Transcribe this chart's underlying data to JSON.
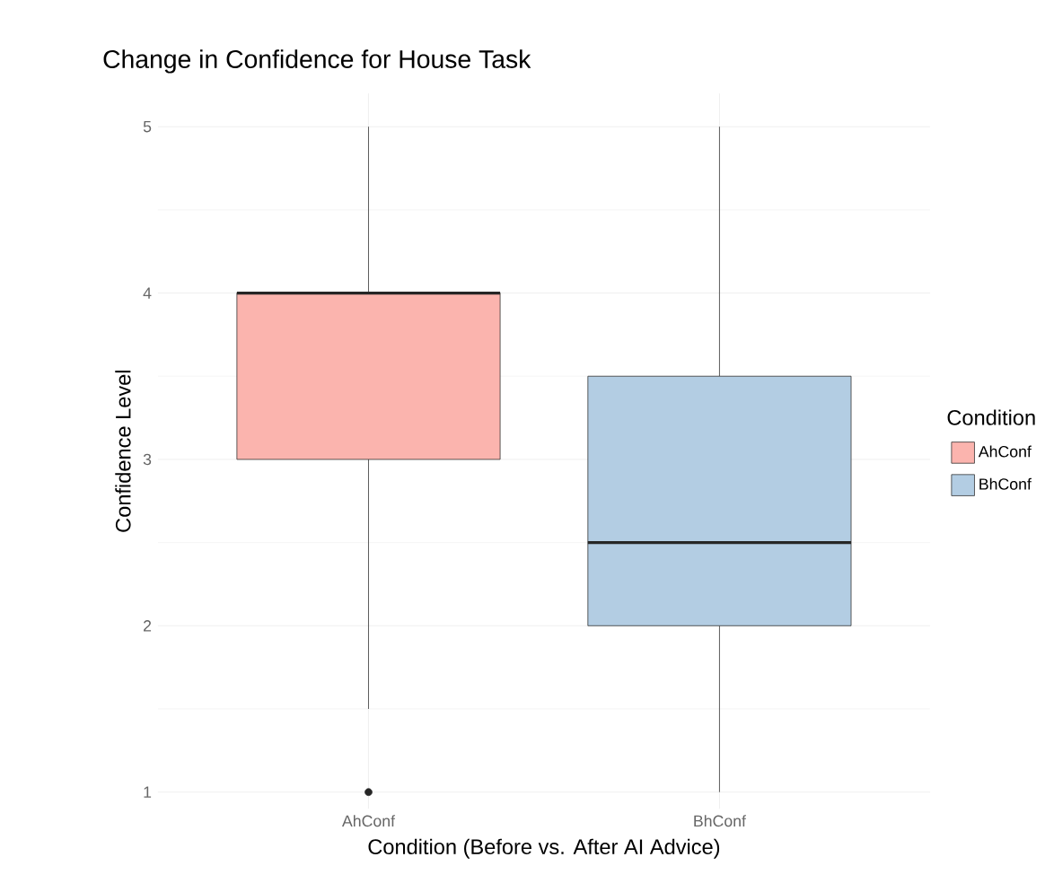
{
  "chart_data": {
    "type": "box",
    "title": "Change in Confidence for House Task",
    "xlabel": "Condition (Before vs. After AI Advice)",
    "ylabel": "Confidence Level",
    "legend_title": "Condition",
    "categories": [
      "AhConf",
      "BhConf"
    ],
    "series": [
      {
        "name": "AhConf",
        "color": "#fbb4ae",
        "boxes": [
          {
            "low": 1.5,
            "q1": 3,
            "median": 4,
            "q3": 4,
            "high": 5,
            "outliers": [
              1
            ]
          },
          null
        ]
      },
      {
        "name": "BhConf",
        "color": "#b3cde3",
        "boxes": [
          null,
          {
            "low": 1,
            "q1": 2,
            "median": 2.5,
            "q3": 3.5,
            "high": 5
          }
        ]
      }
    ],
    "ylim": [
      0.9,
      5.2
    ],
    "yticks": [
      1,
      2,
      3,
      4,
      5
    ],
    "grid": true,
    "legend": "right"
  }
}
